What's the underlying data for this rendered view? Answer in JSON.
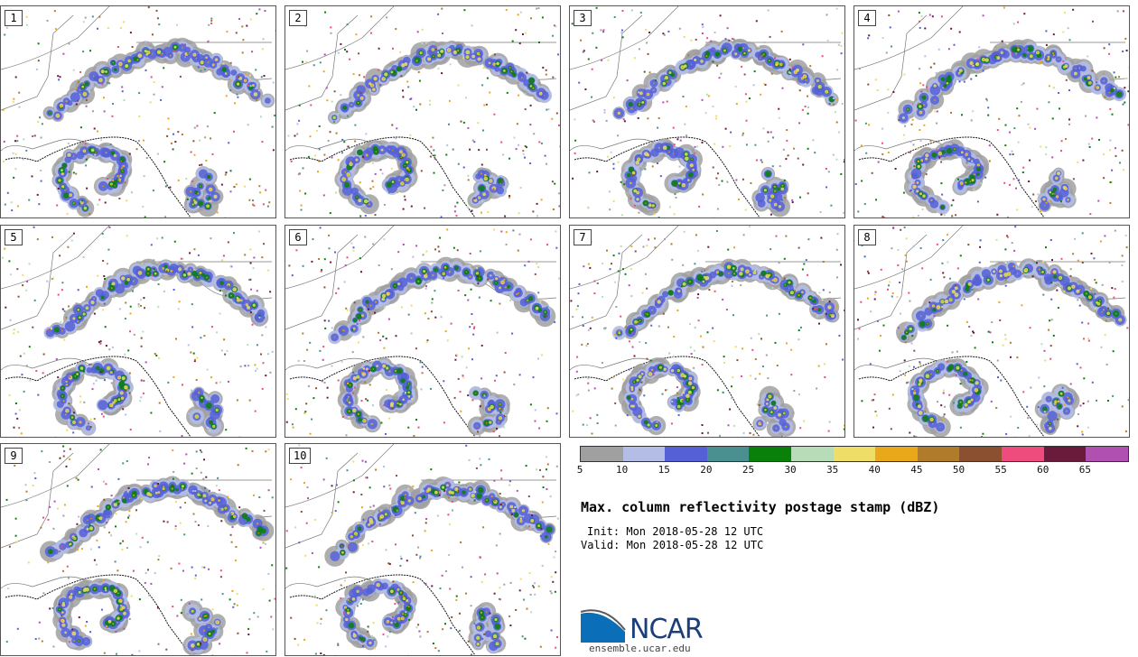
{
  "panels": [
    {
      "label": "1"
    },
    {
      "label": "2"
    },
    {
      "label": "3"
    },
    {
      "label": "4"
    },
    {
      "label": "5"
    },
    {
      "label": "6"
    },
    {
      "label": "7"
    },
    {
      "label": "8"
    },
    {
      "label": "9"
    },
    {
      "label": "10"
    }
  ],
  "colorbar": {
    "colors": [
      "#a0a0a0",
      "#b4bde6",
      "#5560d6",
      "#4a9090",
      "#08800a",
      "#b8dcb8",
      "#eedd66",
      "#e8a81a",
      "#b07c2c",
      "#8a5030",
      "#ee4c7c",
      "#6a1a3a",
      "#b050b0"
    ],
    "ticks": [
      "5",
      "10",
      "15",
      "20",
      "25",
      "30",
      "35",
      "40",
      "45",
      "50",
      "55",
      "60",
      "65"
    ]
  },
  "title": "Max. column reflectivity postage stamp (dBZ)",
  "init": "Init: Mon 2018-05-28 12 UTC",
  "valid": "Valid: Mon 2018-05-28 12 UTC",
  "logo": {
    "text": "NCAR",
    "site": "ensemble.ucar.edu"
  }
}
